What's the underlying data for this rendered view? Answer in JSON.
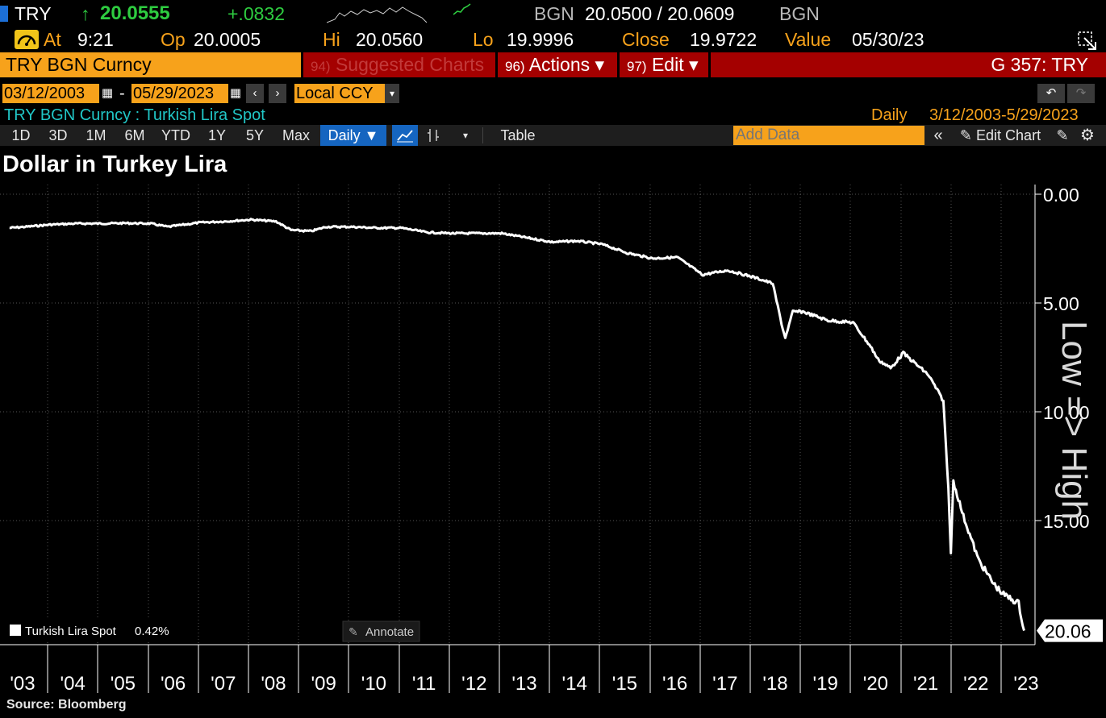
{
  "quote": {
    "ticker": "TRY",
    "last_price": "20.0555",
    "change": "+.0832",
    "source_left": "BGN",
    "bid_ask": "20.0500 / 20.0609",
    "source_right": "BGN",
    "time_label": "At",
    "time": "9:21",
    "open_label": "Op",
    "open": "20.0005",
    "high_label": "Hi",
    "high": "20.0560",
    "low_label": "Lo",
    "low": "19.9996",
    "close_label": "Close",
    "close": "19.9722",
    "value_label": "Value",
    "value_date": "05/30/23"
  },
  "menu": {
    "security": "TRY BGN Curncy",
    "suggested_num": "94)",
    "suggested": "Suggested Charts",
    "actions_num": "96)",
    "actions": "Actions ▾",
    "edit_num": "97)",
    "edit": "Edit ▾",
    "function": "G 357: TRY"
  },
  "daterange": {
    "start": "03/12/2003",
    "end": "05/29/2023",
    "dash": "-",
    "currency": "Local CCY"
  },
  "security_line": {
    "name": "TRY BGN Curncy : Turkish Lira Spot",
    "frequency": "Daily",
    "range": "3/12/2003-5/29/2023"
  },
  "toolbar": {
    "periods": [
      "1D",
      "3D",
      "1M",
      "6M",
      "YTD",
      "1Y",
      "5Y",
      "Max"
    ],
    "frequency": "Daily ▼",
    "table": "Table",
    "add_data_placeholder": "Add Data",
    "edit_chart": "Edit Chart"
  },
  "chart_data": {
    "type": "line",
    "title": "Dollar in Turkey Lira",
    "axis_label_right": "Low => High",
    "inverted_y": true,
    "ylim": [
      0,
      20.06
    ],
    "y_ticks": [
      "0.00",
      "5.00",
      "10.00",
      "15.00"
    ],
    "x_ticks": [
      "'03",
      "'04",
      "'05",
      "'06",
      "'07",
      "'08",
      "'09",
      "'10",
      "'11",
      "'12",
      "'13",
      "'14",
      "'15",
      "'16",
      "'17",
      "'18",
      "'19",
      "'20",
      "'21",
      "'22",
      "'23"
    ],
    "last_value_label": "20.06",
    "series": [
      {
        "name": "Turkish Lira Spot",
        "legend_change": "0.42%",
        "x": [
          2003.19,
          2003.5,
          2004.0,
          2004.5,
          2005.0,
          2005.5,
          2006.0,
          2006.35,
          2006.5,
          2007.0,
          2007.5,
          2008.0,
          2008.5,
          2008.8,
          2009.2,
          2009.5,
          2010.0,
          2010.5,
          2011.0,
          2011.5,
          2012.0,
          2012.5,
          2013.0,
          2013.5,
          2014.0,
          2014.5,
          2015.0,
          2015.5,
          2016.0,
          2016.5,
          2017.0,
          2017.5,
          2018.0,
          2018.4,
          2018.6,
          2018.65,
          2018.8,
          2019.0,
          2019.5,
          2020.0,
          2020.35,
          2020.5,
          2020.75,
          2021.0,
          2021.5,
          2021.8,
          2021.9,
          2021.95,
          2022.0,
          2022.2,
          2022.5,
          2022.8,
          2023.0,
          2023.3,
          2023.41
        ],
        "values": [
          1.55,
          1.5,
          1.4,
          1.35,
          1.35,
          1.33,
          1.35,
          1.5,
          1.45,
          1.3,
          1.25,
          1.17,
          1.25,
          1.65,
          1.7,
          1.5,
          1.5,
          1.55,
          1.55,
          1.75,
          1.8,
          1.8,
          1.8,
          2.0,
          2.2,
          2.15,
          2.3,
          2.7,
          2.95,
          2.9,
          3.7,
          3.5,
          3.8,
          4.1,
          6.2,
          6.6,
          5.4,
          5.4,
          5.8,
          5.9,
          7.0,
          7.6,
          8.0,
          7.3,
          8.3,
          9.5,
          13.5,
          16.5,
          13.2,
          14.8,
          16.8,
          17.9,
          18.4,
          18.8,
          20.06
        ]
      }
    ]
  },
  "annotate": "Annotate",
  "source": "Source: Bloomberg",
  "colors": {
    "background": "#000000",
    "amber": "#f7a21b",
    "menu_red": "#a40000",
    "up_green": "#2ecc40",
    "cyan": "#21c7c7",
    "line": "#ffffff"
  }
}
